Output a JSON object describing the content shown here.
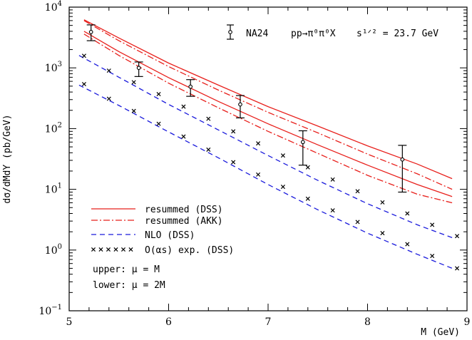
{
  "chart_data": {
    "type": "line",
    "title": "",
    "annotation": {
      "label": "NA24",
      "process": "pp→π⁰π⁰X",
      "energy": "s¹ᐟ² = 23.7 GeV"
    },
    "xlabel": "M (GeV)",
    "ylabel": "dσ/dMdY (pb/GeV)",
    "xlim": [
      5,
      9
    ],
    "ylim": [
      0.1,
      10000
    ],
    "yscale": "log",
    "xticks": [
      5,
      6,
      7,
      8,
      9
    ],
    "xtick_labels": [
      "5",
      "6",
      "7",
      "8",
      "9"
    ],
    "yticks": [
      0.1,
      1,
      10,
      100,
      1000,
      10000
    ],
    "ytick_labels": [
      {
        "base": "10",
        "exp": "−1"
      },
      {
        "base": "10",
        "exp": "0"
      },
      {
        "base": "10",
        "exp": "1"
      },
      {
        "base": "10",
        "exp": "2"
      },
      {
        "base": "10",
        "exp": "3"
      },
      {
        "base": "10",
        "exp": "4"
      }
    ],
    "grid": false,
    "legend_position": "bottom-left",
    "legend": [
      {
        "label": "resummed (DSS)",
        "style": "solid",
        "color": "#e8201c"
      },
      {
        "label": "resummed (AKK)",
        "style": "dashdot",
        "color": "#e8201c"
      },
      {
        "label": "NLO (DSS)",
        "style": "dashed",
        "color": "#1a1adc"
      },
      {
        "label": "O(αs) exp. (DSS)",
        "style": "cross",
        "color": "#000000"
      }
    ],
    "scale_notes": [
      "upper: μ = M",
      "lower: μ = 2M"
    ],
    "series": [
      {
        "name": "resummed (DSS)",
        "variant": "upper: μ = M",
        "style": "solid",
        "color": "#e8201c",
        "x": [
          5.15,
          5.5,
          6,
          6.5,
          7,
          7.5,
          8,
          8.5,
          8.85
        ],
        "y": [
          6200,
          3100,
          1200,
          520,
          230,
          110,
          52,
          26,
          15
        ]
      },
      {
        "name": "resummed (DSS)",
        "variant": "lower: μ = 2M",
        "style": "solid",
        "color": "#e8201c",
        "x": [
          5.15,
          5.5,
          6,
          6.5,
          7,
          7.5,
          8,
          8.5,
          8.85
        ],
        "y": [
          4000,
          1850,
          690,
          280,
          120,
          54,
          25,
          12,
          7.6
        ]
      },
      {
        "name": "resummed (AKK)",
        "variant": "upper: μ = M",
        "style": "dashdot",
        "color": "#e8201c",
        "x": [
          5.15,
          5.5,
          6,
          6.5,
          7,
          7.5,
          8,
          8.5,
          8.85
        ],
        "y": [
          6000,
          2800,
          1050,
          430,
          185,
          85,
          38,
          18,
          10
        ]
      },
      {
        "name": "resummed (AKK)",
        "variant": "lower: μ = 2M",
        "style": "dashdot",
        "color": "#e8201c",
        "x": [
          5.15,
          5.5,
          6,
          6.5,
          7,
          7.5,
          8,
          8.5,
          8.85
        ],
        "y": [
          3600,
          1600,
          560,
          220,
          90,
          39,
          17,
          8.3,
          6
        ]
      },
      {
        "name": "NLO (DSS)",
        "variant": "upper: μ = M",
        "style": "dashed",
        "color": "#1a1adc",
        "x": [
          5.1,
          5.5,
          6,
          6.5,
          7,
          7.5,
          8,
          8.5,
          8.85
        ],
        "y": [
          1600,
          700,
          250,
          95,
          36,
          14,
          5.8,
          2.6,
          1.6
        ]
      },
      {
        "name": "NLO (DSS)",
        "variant": "lower: μ = 2M",
        "style": "dashed",
        "color": "#1a1adc",
        "x": [
          5.1,
          5.5,
          6,
          6.5,
          7,
          7.5,
          8,
          8.5,
          8.85
        ],
        "y": [
          520,
          240,
          88,
          33,
          12,
          4.6,
          1.9,
          0.85,
          0.5
        ]
      },
      {
        "name": "O(αs) exp. (DSS)",
        "variant": "upper: μ = M",
        "style": "cross",
        "color": "#000000",
        "x": [
          5.15,
          5.4,
          5.65,
          5.9,
          6.15,
          6.4,
          6.65,
          6.9,
          7.15,
          7.4,
          7.65,
          7.9,
          8.15,
          8.4,
          8.65,
          8.9
        ],
        "y": [
          1580,
          900,
          580,
          370,
          230,
          145,
          90,
          57,
          36,
          23,
          14.5,
          9.3,
          6.1,
          4,
          2.6,
          1.7
        ]
      },
      {
        "name": "O(αs) exp. (DSS)",
        "variant": "lower: μ = 2M",
        "style": "cross",
        "color": "#000000",
        "x": [
          5.15,
          5.4,
          5.65,
          5.9,
          6.15,
          6.4,
          6.65,
          6.9,
          7.15,
          7.4,
          7.65,
          7.9,
          8.15,
          8.4,
          8.65,
          8.9
        ],
        "y": [
          540,
          310,
          195,
          120,
          74,
          45,
          28,
          17.5,
          11,
          7,
          4.5,
          2.9,
          1.9,
          1.25,
          0.8,
          0.5
        ]
      }
    ],
    "data_points": {
      "name": "NA24",
      "x": [
        5.22,
        5.7,
        6.22,
        6.72,
        7.35,
        8.35
      ],
      "y": [
        3900,
        1000,
        490,
        250,
        60,
        31
      ],
      "y_low": [
        2800,
        720,
        340,
        150,
        25,
        9
      ],
      "y_high": [
        5100,
        1250,
        640,
        350,
        92,
        53
      ]
    }
  }
}
